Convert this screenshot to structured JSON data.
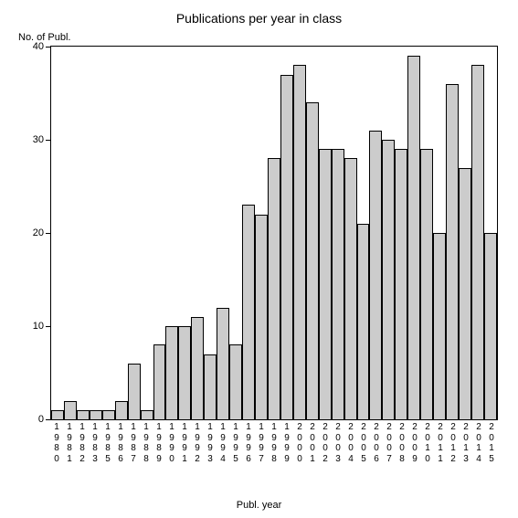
{
  "chart": {
    "type": "bar",
    "title": "Publications per year in class",
    "title_fontsize": 14,
    "ylabel": "No. of Publ.",
    "xlabel": "Publ. year",
    "label_fontsize": 11,
    "categories": [
      "1980",
      "1981",
      "1982",
      "1983",
      "1985",
      "1986",
      "1987",
      "1988",
      "1989",
      "1990",
      "1991",
      "1992",
      "1993",
      "1994",
      "1995",
      "1996",
      "1997",
      "1998",
      "1999",
      "2000",
      "2001",
      "2002",
      "2003",
      "2004",
      "2005",
      "2006",
      "2007",
      "2008",
      "2009",
      "2010",
      "2011",
      "2012",
      "2013",
      "2014",
      "2015"
    ],
    "values": [
      1,
      2,
      1,
      1,
      1,
      2,
      6,
      1,
      8,
      10,
      10,
      11,
      7,
      12,
      8,
      23,
      22,
      28,
      37,
      38,
      34,
      29,
      29,
      28,
      21,
      31,
      30,
      29,
      39,
      29,
      20,
      36,
      27,
      38,
      20
    ],
    "ylim": [
      0,
      40
    ],
    "ytick_step": 10,
    "yticks": [
      0,
      10,
      20,
      30,
      40
    ],
    "bar_color": "#cccccc",
    "bar_border_color": "#000000",
    "background_color": "#ffffff",
    "axis_color": "#000000",
    "tick_fontsize": 11
  }
}
